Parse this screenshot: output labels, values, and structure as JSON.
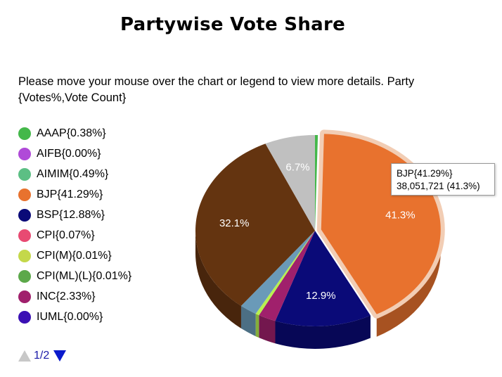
{
  "page": {
    "title": "Partywise Vote Share",
    "instructions": "Please move your mouse over the chart or legend to view more details. Party {Votes%,Vote Count}"
  },
  "legend": {
    "items": [
      {
        "label": "AAAP{0.38%}",
        "color": "#44b84a"
      },
      {
        "label": "AIFB{0.00%}",
        "color": "#b04ad8"
      },
      {
        "label": "AIMIM{0.49%}",
        "color": "#5cbf84"
      },
      {
        "label": "BJP{41.29%}",
        "color": "#e8722e"
      },
      {
        "label": "BSP{12.88%}",
        "color": "#0a0a78"
      },
      {
        "label": "CPI{0.07%}",
        "color": "#e84a72"
      },
      {
        "label": "CPI(M){0.01%}",
        "color": "#c4d84a"
      },
      {
        "label": "CPI(ML)(L){0.01%}",
        "color": "#5ca84a"
      },
      {
        "label": "INC{2.33%}",
        "color": "#a0206c"
      },
      {
        "label": "IUML{0.00%}",
        "color": "#3a10b4"
      }
    ],
    "pager": {
      "text": "1/2"
    }
  },
  "tooltip": {
    "line1": "BJP{41.29%}",
    "line2": "38,051,721 (41.3%)"
  },
  "chart_data": {
    "type": "pie",
    "title": "Partywise Vote Share",
    "legend_position": "left",
    "slices": [
      {
        "name": "AAAP",
        "value": 0.38,
        "color": "#44b84a",
        "label": ""
      },
      {
        "name": "BJP",
        "value": 41.29,
        "color": "#e8722e",
        "label": "41.3%",
        "exploded": true
      },
      {
        "name": "BSP",
        "value": 12.88,
        "color": "#0a0a78",
        "label": "12.9%"
      },
      {
        "name": "INC",
        "value": 2.33,
        "color": "#a0206c",
        "label": ""
      },
      {
        "name": "",
        "value": 0.5,
        "color": "#b8f050",
        "label": ""
      },
      {
        "name": "",
        "value": 2.3,
        "color": "#6a9ab8",
        "label": ""
      },
      {
        "name": "",
        "value": 32.1,
        "color": "#643410",
        "label": "32.1%"
      },
      {
        "name": "",
        "value": 6.7,
        "color": "#c0c0c0",
        "label": "6.7%"
      }
    ]
  }
}
